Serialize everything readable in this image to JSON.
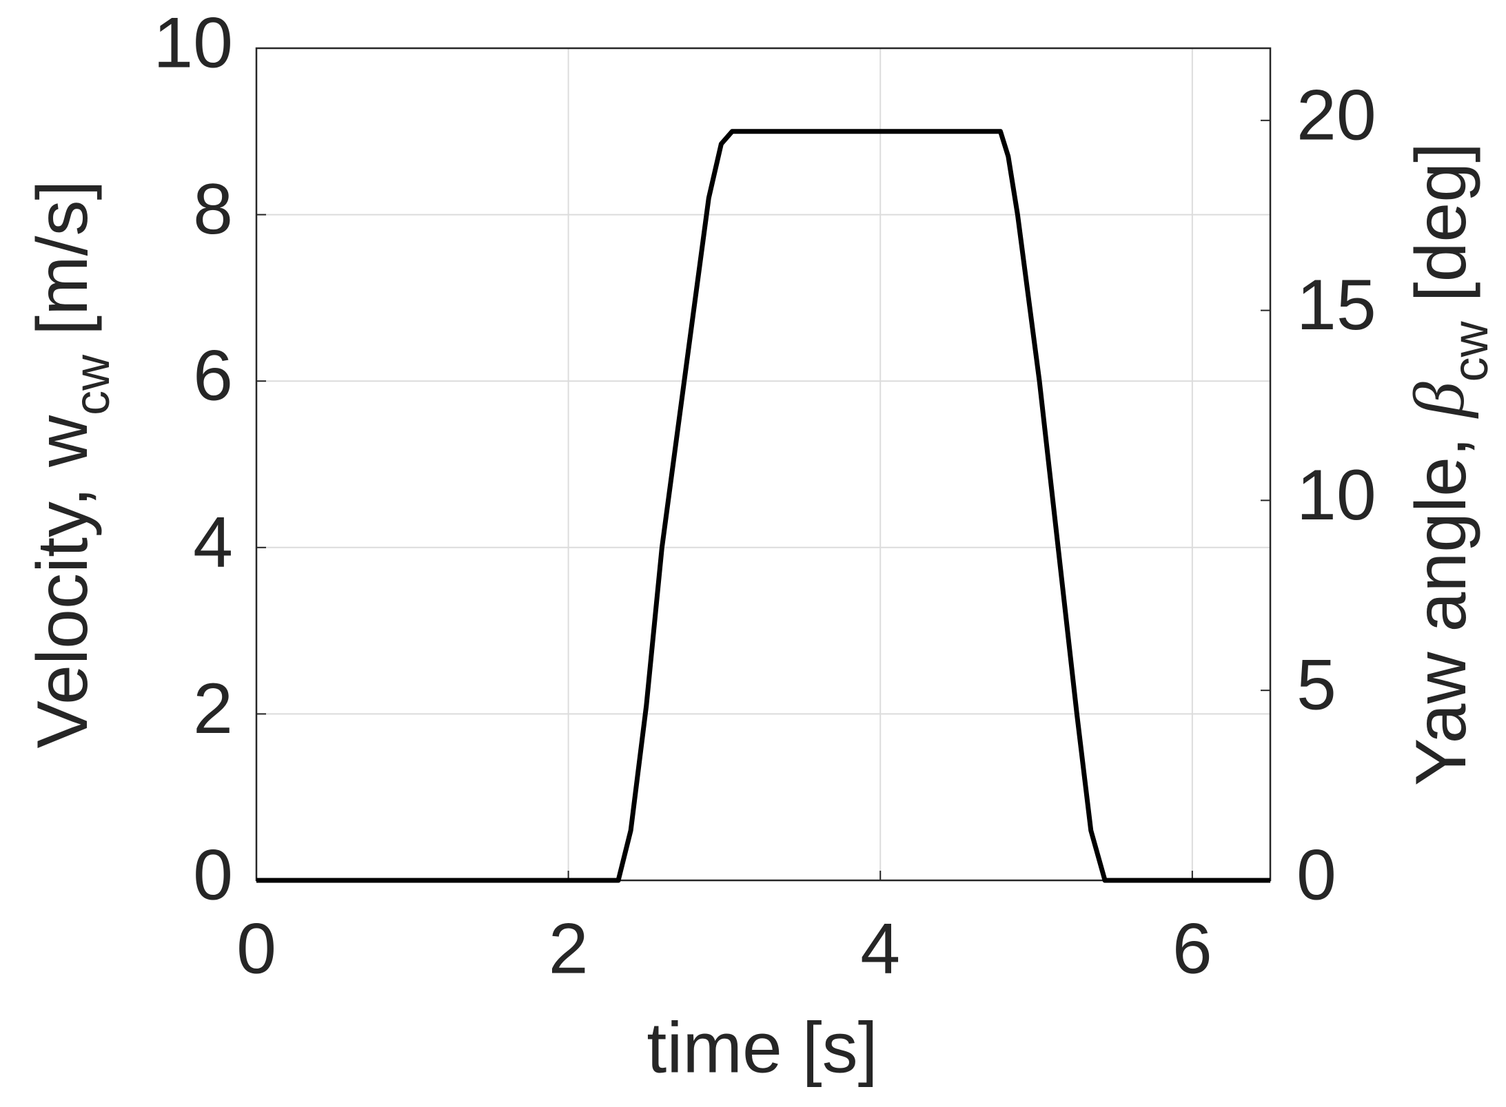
{
  "chart_data": {
    "type": "line",
    "xlabel": "time [s]",
    "ylabel": [
      "Velocity, w",
      "cw",
      "[m/s]"
    ],
    "y2label": [
      "Yaw angle,",
      "β",
      "cw",
      "[deg]"
    ],
    "x": [
      0,
      2.32,
      2.4,
      2.5,
      2.6,
      2.7,
      2.8,
      2.9,
      2.98,
      3.05,
      4.77,
      4.82,
      4.88,
      5.02,
      5.14,
      5.26,
      5.35,
      5.44,
      6.5
    ],
    "series": [
      {
        "color": "#000000",
        "values": [
          0,
          0,
          0.6,
          2.1,
          4.0,
          5.4,
          6.8,
          8.2,
          8.85,
          9,
          9,
          8.7,
          8.0,
          6.0,
          4.0,
          2.0,
          0.6,
          0,
          0
        ]
      }
    ],
    "xlim": [
      0,
      6.5
    ],
    "xticks": [
      0,
      2,
      4,
      6
    ],
    "ylim": [
      0,
      10
    ],
    "yticks": [
      0,
      2,
      4,
      6,
      8,
      10
    ],
    "y2lim": [
      0,
      21.9
    ],
    "y2ticks": [
      0,
      5,
      10,
      15,
      20
    ],
    "grid": true
  }
}
